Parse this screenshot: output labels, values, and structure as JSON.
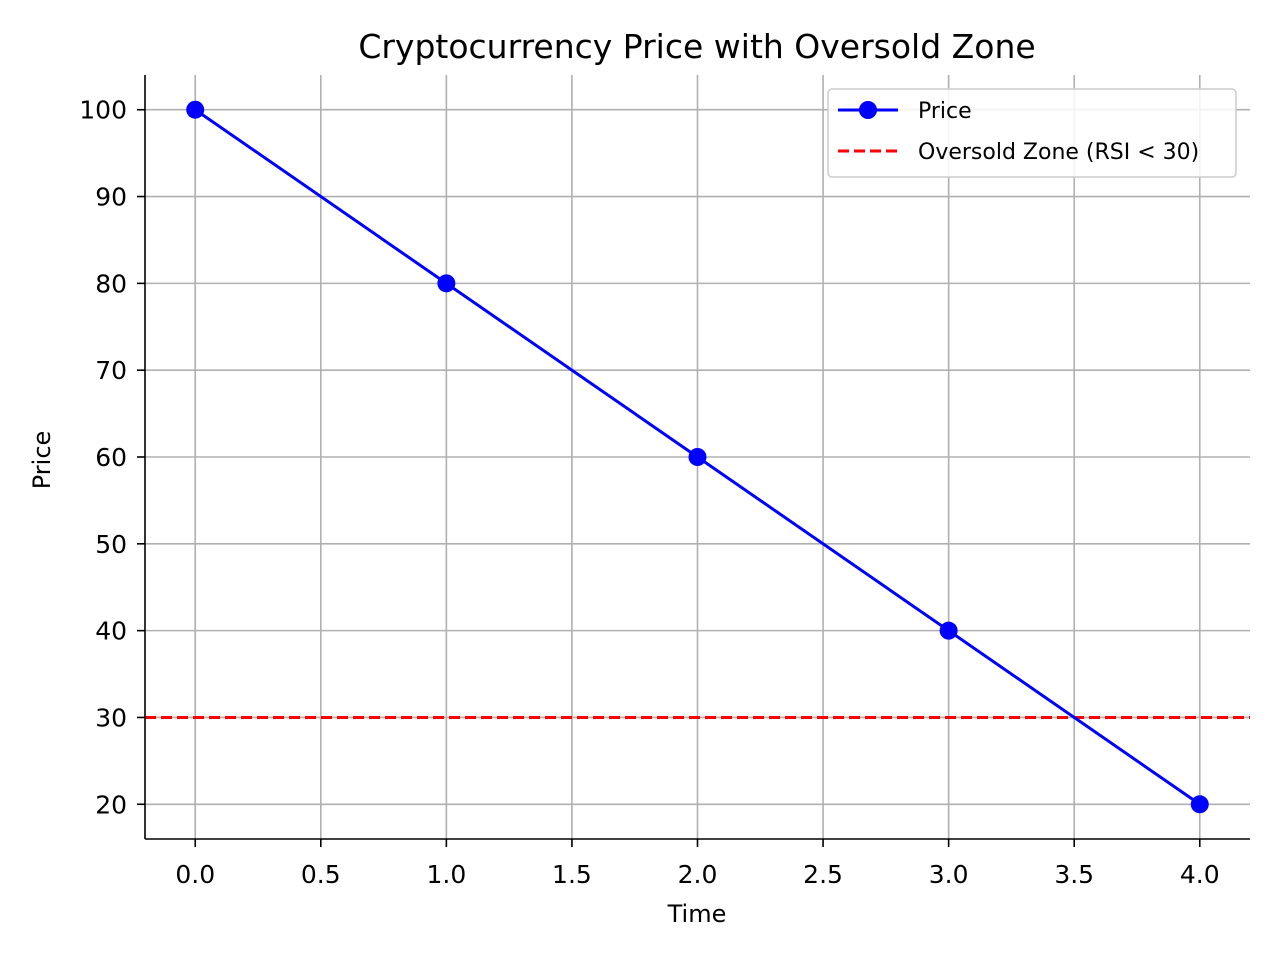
{
  "chart_data": {
    "type": "line",
    "title": "Cryptocurrency Price with Oversold Zone",
    "xlabel": "Time",
    "ylabel": "Price",
    "xlim": [
      -0.2,
      4.2
    ],
    "ylim": [
      16,
      104
    ],
    "x_ticks": [
      "0.0",
      "0.5",
      "1.0",
      "1.5",
      "2.0",
      "2.5",
      "3.0",
      "3.5",
      "4.0"
    ],
    "y_ticks": [
      "20",
      "30",
      "40",
      "50",
      "60",
      "70",
      "80",
      "90",
      "100"
    ],
    "grid": true,
    "legend_position": "top-right",
    "series": [
      {
        "name": "Price",
        "x": [
          0,
          1,
          2,
          3,
          4
        ],
        "values": [
          100,
          80,
          60,
          40,
          20
        ],
        "color": "#0000ff",
        "marker": "circle",
        "line_style": "solid"
      }
    ],
    "reference_lines": [
      {
        "name": "Oversold Zone (RSI < 30)",
        "y": 30,
        "color": "#ff0000",
        "line_style": "dashed"
      }
    ]
  }
}
